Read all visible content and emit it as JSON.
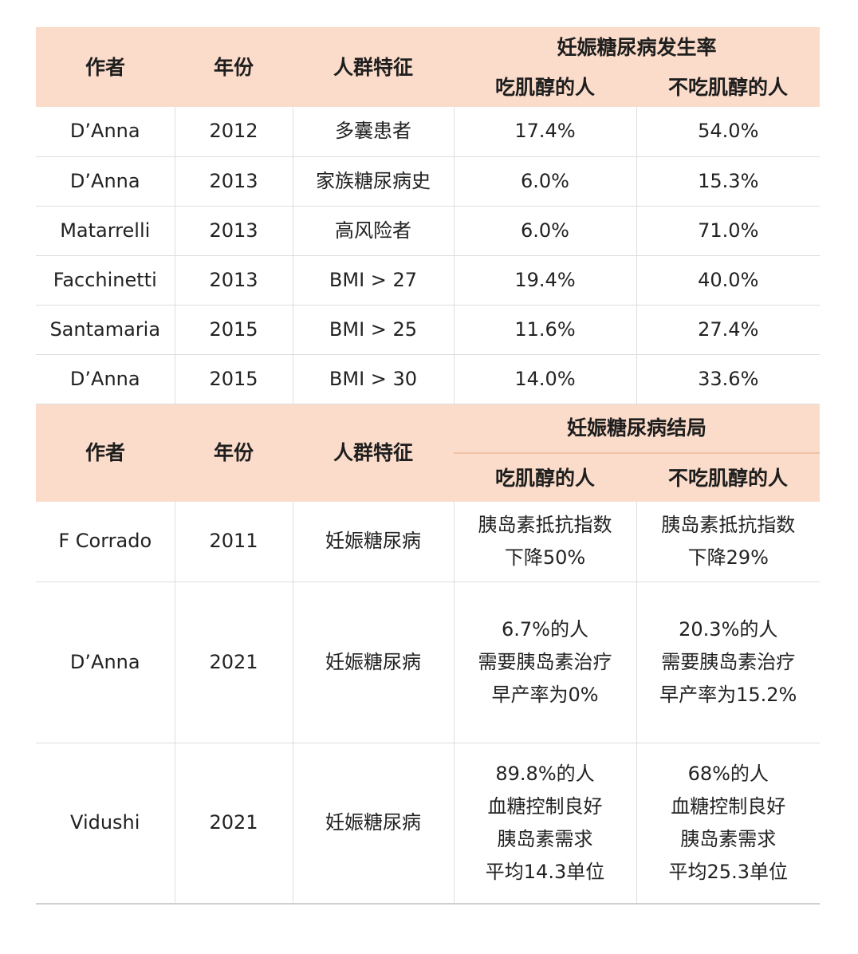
{
  "table1": {
    "headers": {
      "author": "作者",
      "year": "年份",
      "population": "人群特征",
      "group": "妊娠糖尿病发生率",
      "with": "吃肌醇的人",
      "without": "不吃肌醇的人"
    },
    "rows": [
      {
        "author": "D’Anna",
        "year": "2012",
        "population": "多囊患者",
        "with": "17.4%",
        "without": "54.0%"
      },
      {
        "author": "D’Anna",
        "year": "2013",
        "population": "家族糖尿病史",
        "with": "6.0%",
        "without": "15.3%"
      },
      {
        "author": "Matarrelli",
        "year": "2013",
        "population": "高风险者",
        "with": "6.0%",
        "without": "71.0%"
      },
      {
        "author": "Facchinetti",
        "year": "2013",
        "population": "BMI > 27",
        "with": "19.4%",
        "without": "40.0%"
      },
      {
        "author": "Santamaria",
        "year": "2015",
        "population": "BMI > 25",
        "with": "11.6%",
        "without": "27.4%"
      },
      {
        "author": "D’Anna",
        "year": "2015",
        "population": "BMI > 30",
        "with": "14.0%",
        "without": "33.6%"
      }
    ]
  },
  "table2": {
    "headers": {
      "author": "作者",
      "year": "年份",
      "population": "人群特征",
      "group": "妊娠糖尿病结局",
      "with": "吃肌醇的人",
      "without": "不吃肌醇的人"
    },
    "rows": [
      {
        "author": "F Corrado",
        "year": "2011",
        "population": "妊娠糖尿病",
        "with": [
          "胰岛素抵抗指数",
          "下降50%"
        ],
        "without": [
          "胰岛素抵抗指数",
          "下降29%"
        ]
      },
      {
        "author": "D’Anna",
        "year": "2021",
        "population": "妊娠糖尿病",
        "with": [
          "6.7%的人",
          "需要胰岛素治疗",
          "早产率为0%"
        ],
        "without": [
          "20.3%的人",
          "需要胰岛素治疗",
          "早产率为15.2%"
        ]
      },
      {
        "author": "Vidushi",
        "year": "2021",
        "population": "妊娠糖尿病",
        "with": [
          "89.8%的人",
          "血糖控制良好",
          "胰岛素需求",
          "平均14.3单位"
        ],
        "without": [
          "68%的人",
          "血糖控制良好",
          "胰岛素需求",
          "平均25.3单位"
        ]
      }
    ]
  }
}
